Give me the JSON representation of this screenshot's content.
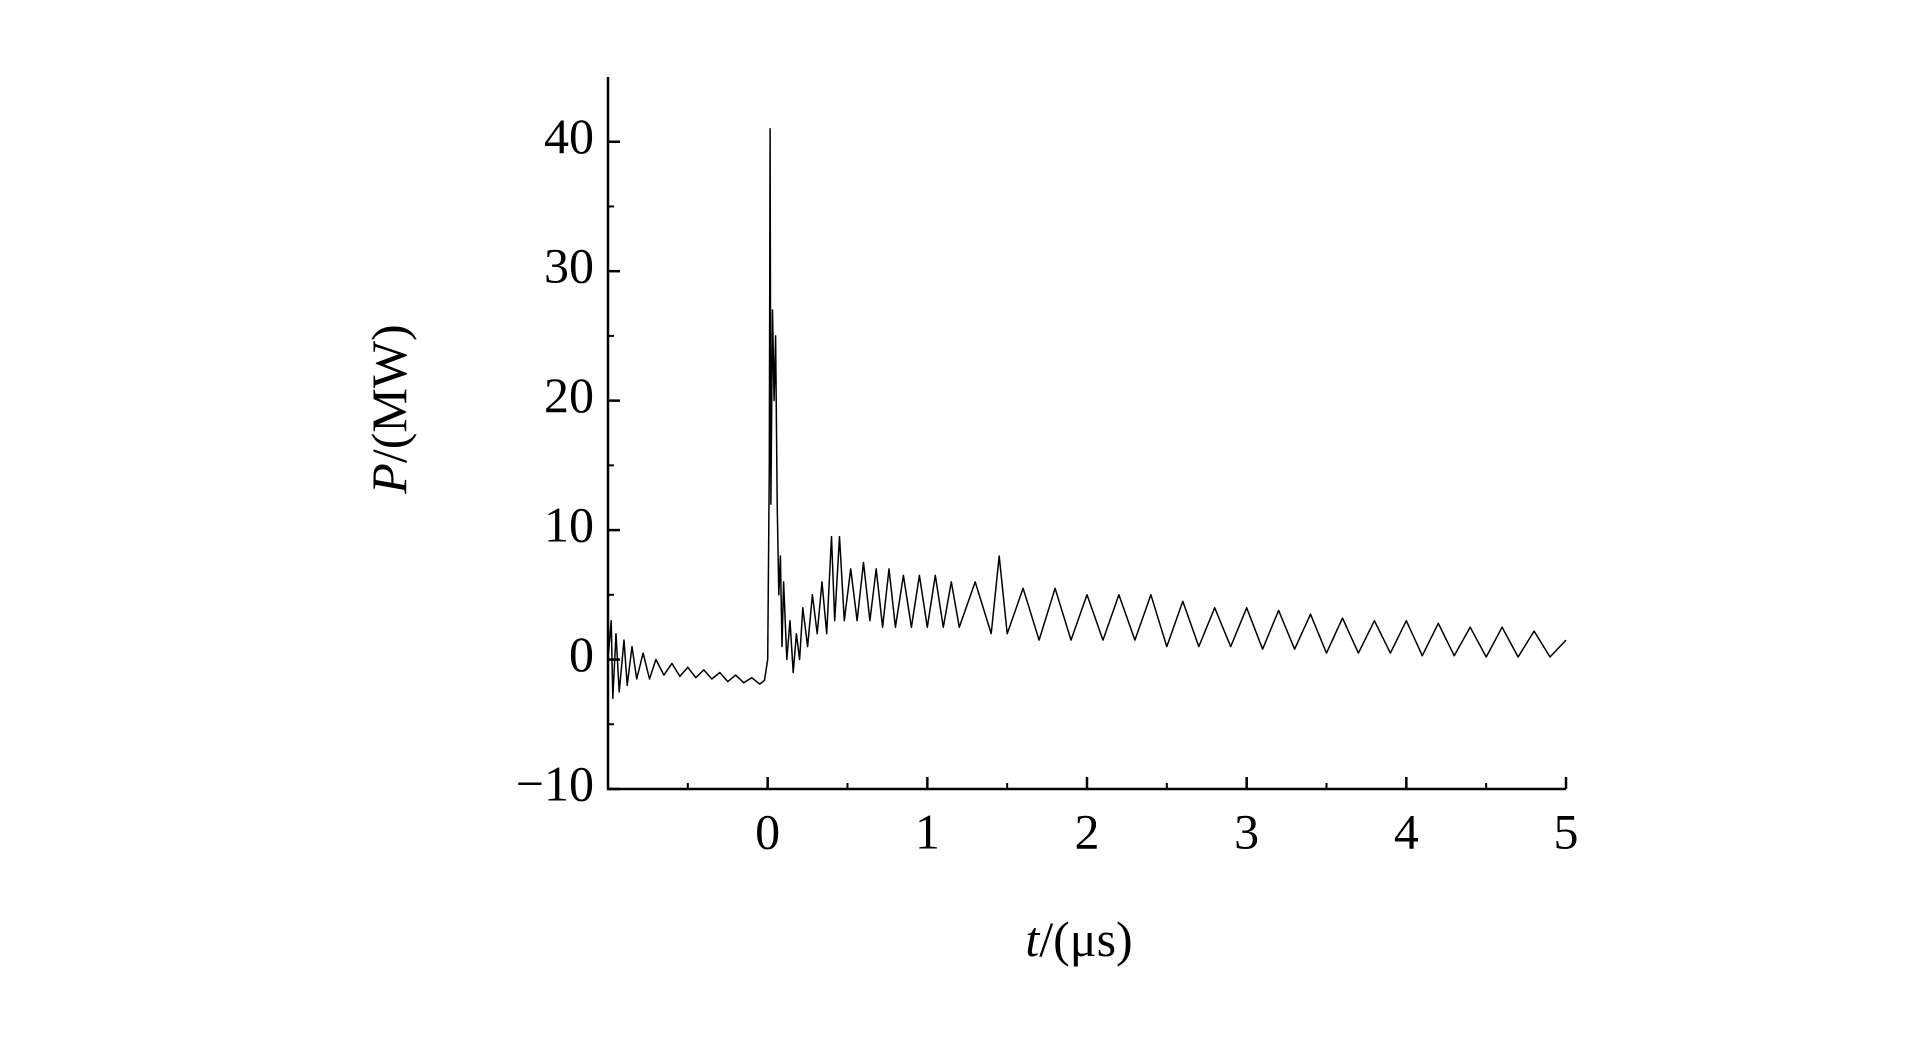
{
  "chart_data": {
    "type": "line",
    "x_label": {
      "symbol": "t",
      "unit": "/(μs)"
    },
    "y_label": {
      "symbol": "P",
      "unit": "/(MW)"
    },
    "xlim": [
      -1,
      5
    ],
    "ylim": [
      -10,
      45
    ],
    "xticks": [
      0,
      1,
      2,
      3,
      4,
      5
    ],
    "yticks": [
      {
        "value": -10,
        "label": "−10"
      },
      0,
      10,
      20,
      30,
      40
    ],
    "x_minor_ticks": [
      -0.5,
      0.5,
      1.5,
      2.5,
      3.5,
      4.5
    ],
    "y_minor_ticks": [
      -5,
      5,
      15,
      25,
      35
    ],
    "grid": false,
    "series": [
      {
        "color": "#000000",
        "x": [
          -1.0,
          -0.98,
          -0.97,
          -0.95,
          -0.93,
          -0.9,
          -0.88,
          -0.85,
          -0.82,
          -0.78,
          -0.74,
          -0.7,
          -0.65,
          -0.6,
          -0.55,
          -0.5,
          -0.45,
          -0.4,
          -0.35,
          -0.3,
          -0.25,
          -0.2,
          -0.15,
          -0.1,
          -0.05,
          -0.02,
          0.0,
          0.01,
          0.015,
          0.02,
          0.03,
          0.04,
          0.05,
          0.06,
          0.07,
          0.08,
          0.09,
          0.1,
          0.12,
          0.14,
          0.16,
          0.18,
          0.2,
          0.22,
          0.25,
          0.28,
          0.31,
          0.34,
          0.37,
          0.4,
          0.42,
          0.45,
          0.48,
          0.52,
          0.56,
          0.6,
          0.64,
          0.68,
          0.72,
          0.76,
          0.8,
          0.85,
          0.9,
          0.95,
          1.0,
          1.05,
          1.1,
          1.15,
          1.2,
          1.3,
          1.4,
          1.45,
          1.5,
          1.6,
          1.7,
          1.8,
          1.9,
          2.0,
          2.1,
          2.2,
          2.3,
          2.4,
          2.5,
          2.6,
          2.7,
          2.8,
          2.9,
          3.0,
          3.1,
          3.2,
          3.3,
          3.4,
          3.5,
          3.6,
          3.7,
          3.8,
          3.9,
          4.0,
          4.1,
          4.2,
          4.3,
          4.4,
          4.5,
          4.6,
          4.7,
          4.8,
          4.9,
          5.0
        ],
        "values": [
          0,
          3,
          -3,
          2,
          -2.5,
          1.5,
          -2,
          1,
          -1.5,
          0.5,
          -1.5,
          0,
          -1.2,
          -0.3,
          -1.3,
          -0.6,
          -1.4,
          -0.8,
          -1.5,
          -1.0,
          -1.7,
          -1.2,
          -1.8,
          -1.4,
          -1.9,
          -1.6,
          0,
          15,
          41,
          12,
          27,
          20,
          25,
          12,
          5,
          8,
          1,
          6,
          0,
          3,
          -1,
          2,
          0,
          4,
          1,
          5,
          2,
          6,
          2,
          9.5,
          3,
          9.5,
          3,
          7,
          3,
          7.5,
          3,
          7,
          2.5,
          7,
          2.5,
          6.5,
          2.5,
          6.5,
          2.5,
          6.5,
          2.5,
          6,
          2.5,
          6,
          2,
          8,
          2,
          5.5,
          1.5,
          5.5,
          1.5,
          5,
          1.5,
          5,
          1.5,
          5,
          1,
          4.5,
          1,
          4,
          1,
          4,
          0.8,
          3.8,
          0.8,
          3.5,
          0.5,
          3.2,
          0.5,
          3,
          0.5,
          3,
          0.3,
          2.8,
          0.3,
          2.5,
          0.2,
          2.5,
          0.2,
          2.2,
          0.2,
          1.5
        ]
      }
    ]
  }
}
